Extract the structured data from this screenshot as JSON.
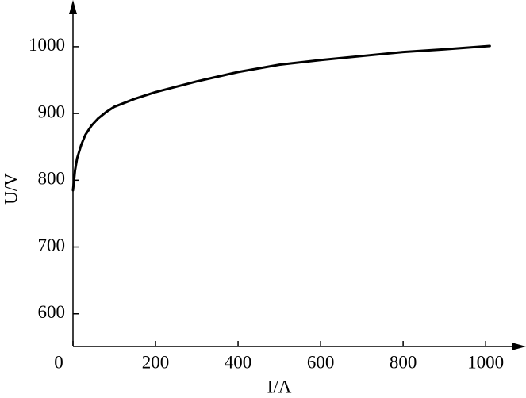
{
  "chart_data": {
    "type": "line",
    "x_label": "I/A",
    "y_label": "U/V",
    "x": [
      0,
      5,
      10,
      20,
      30,
      45,
      60,
      80,
      100,
      150,
      200,
      300,
      400,
      500,
      600,
      700,
      800,
      900,
      1010
    ],
    "series": [
      {
        "color": "#000000",
        "values": [
          785,
          815,
          833,
          853,
          868,
          882,
          892,
          902,
          910,
          922,
          932,
          948,
          962,
          973,
          980,
          986,
          992,
          996,
          1001
        ]
      }
    ],
    "xlim": [
      0,
      1092
    ],
    "ylim": [
      551,
      1064
    ],
    "xticks": [
      0,
      200,
      400,
      600,
      800,
      1000
    ],
    "yticks": [
      600,
      700,
      800,
      900,
      1000
    ]
  }
}
